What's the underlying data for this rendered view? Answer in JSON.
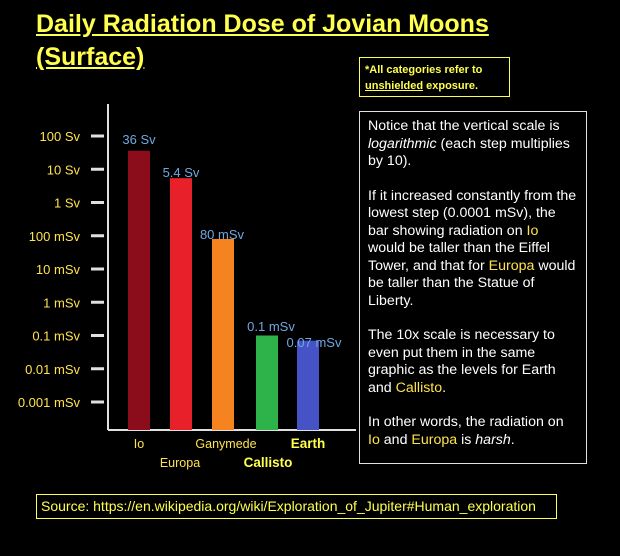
{
  "title_line1": "Daily Radiation Dose of Jovian Moons",
  "title_line2": "(Surface)",
  "note": {
    "prefix": "*All categories refer to ",
    "underlined": "unshielded",
    "suffix": " exposure."
  },
  "explanation": {
    "p1_a": "Notice that the vertical scale is ",
    "p1_em": "logarithmic",
    "p1_b": " (each step multiplies by 10).",
    "p2_a": "If it increased constantly from the lowest step (0.0001 mSv), the bar showing radiation on ",
    "p2_io": "Io",
    "p2_b": " would be taller than the Eiffel Tower, and that for ",
    "p2_europa": "Europa",
    "p2_c": " would be taller than the Statue of Liberty.",
    "p3_a": "The 10x scale is necessary to even put them in the same graphic as the levels for Earth and ",
    "p3_callisto": "Callisto",
    "p3_b": ".",
    "p4_a": "In other words, the radiation on ",
    "p4_io": "Io",
    "p4_and": " and ",
    "p4_europa": "Europa",
    "p4_is": " is ",
    "p4_em": "harsh",
    "p4_end": "."
  },
  "source": "Source: https://en.wikipedia.org/wiki/Exploration_of_Jupiter#Human_exploration",
  "chart_data": {
    "type": "bar",
    "scale": "log",
    "unit": "Sv",
    "yticks": [
      {
        "label": "100 Sv",
        "value": 100
      },
      {
        "label": "10 Sv",
        "value": 10
      },
      {
        "label": "1 Sv",
        "value": 1
      },
      {
        "label": "100 mSv",
        "value": 0.1
      },
      {
        "label": "10 mSv",
        "value": 0.01
      },
      {
        "label": "1 mSv",
        "value": 0.001
      },
      {
        "label": "0.1 mSv",
        "value": 0.0001
      },
      {
        "label": "0.01 mSv",
        "value": 1e-05
      },
      {
        "label": "0.001 mSv",
        "value": 1e-06
      }
    ],
    "bars": [
      {
        "category": "Io",
        "value": 36,
        "label": "36 Sv",
        "color": "#8b0d1c",
        "label_color": "#6fa8e0",
        "cat_color": "#ffe34d"
      },
      {
        "category": "Europa",
        "value": 5.4,
        "label": "5.4 Sv",
        "color": "#e8202a",
        "label_color": "#6fa8e0",
        "cat_color": "#ffe34d"
      },
      {
        "category": "Ganymede",
        "value": 0.08,
        "label": "80 mSv",
        "color": "#f58420",
        "label_color": "#6fa8e0",
        "cat_color": "#ffe34d"
      },
      {
        "category": "Callisto",
        "value": 0.0001,
        "label": "0.1 mSv",
        "color": "#2db34a",
        "label_color": "#6fa8e0",
        "cat_color": "#ffff4d"
      },
      {
        "category": "Earth",
        "value": 7e-05,
        "label": "0.07 mSv",
        "color": "#4553c6",
        "label_color": "#6fa8e0",
        "cat_color": "#ffff4d"
      }
    ],
    "axis_color": "#e0e0e0",
    "tick_label_color": "#ffe34d"
  }
}
